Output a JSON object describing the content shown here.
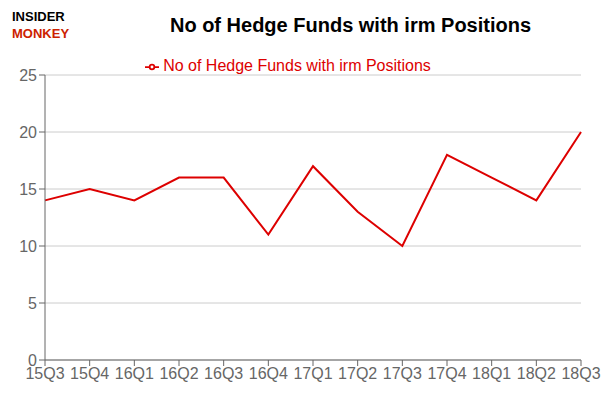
{
  "chart_data": {
    "type": "line",
    "title": "No of Hedge Funds with irm Positions",
    "categories": [
      "15Q3",
      "15Q4",
      "16Q1",
      "16Q2",
      "16Q3",
      "16Q4",
      "17Q1",
      "17Q2",
      "17Q3",
      "17Q4",
      "18Q1",
      "18Q2",
      "18Q3"
    ],
    "series": [
      {
        "name": "No of Hedge Funds with irm Positions",
        "color": "#dd0000",
        "values": [
          14,
          15,
          14,
          16,
          16,
          11,
          17,
          13,
          10,
          18,
          16,
          14,
          20
        ]
      }
    ],
    "ylim": [
      0,
      25
    ],
    "yticks": [
      0,
      5,
      10,
      15,
      20,
      25
    ],
    "grid": true,
    "legend": "top",
    "annotations": [
      {
        "text": "INSIDER",
        "color": "#000000"
      },
      {
        "text": "MONKEY",
        "color": "#cc2200"
      }
    ]
  }
}
